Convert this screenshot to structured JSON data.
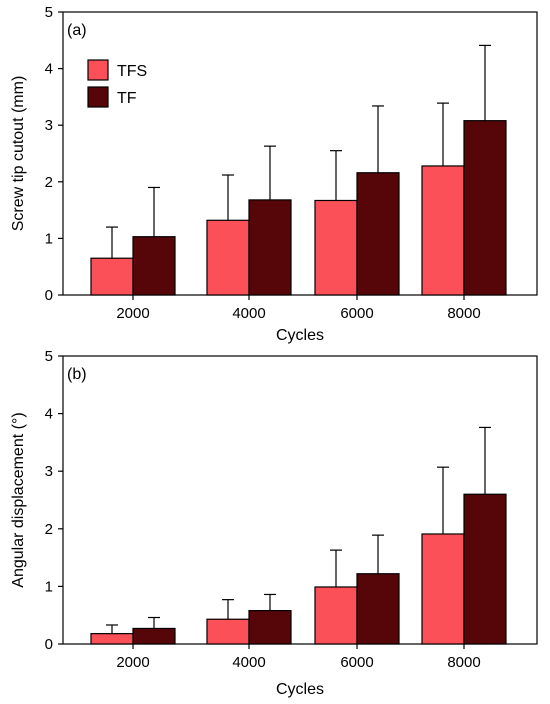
{
  "chart_data": [
    {
      "type": "bar",
      "panel_label": "(a)",
      "xlabel": "Cycles",
      "ylabel": "Screw tip cutout (mm)",
      "categories": [
        "2000",
        "4000",
        "6000",
        "8000"
      ],
      "ylim": [
        0,
        5
      ],
      "yticks": [
        "0",
        "1",
        "2",
        "3",
        "4",
        "5"
      ],
      "legend": "top-left",
      "error_bars": true,
      "series": [
        {
          "name": "TFS",
          "color": "#fc5058",
          "values": [
            0.65,
            1.32,
            1.67,
            2.28
          ],
          "errors": [
            0.55,
            0.8,
            0.88,
            1.11
          ]
        },
        {
          "name": "TF",
          "color": "#560508",
          "values": [
            1.03,
            1.68,
            2.16,
            3.08
          ],
          "errors": [
            0.87,
            0.95,
            1.18,
            1.33
          ]
        }
      ]
    },
    {
      "type": "bar",
      "panel_label": "(b)",
      "xlabel": "Cycles",
      "ylabel": "Angular displacement (°)",
      "categories": [
        "2000",
        "4000",
        "6000",
        "8000"
      ],
      "ylim": [
        0,
        5
      ],
      "yticks": [
        "0",
        "1",
        "2",
        "3",
        "4",
        "5"
      ],
      "error_bars": true,
      "series": [
        {
          "name": "TFS",
          "color": "#fc5058",
          "values": [
            0.18,
            0.43,
            0.99,
            1.91
          ],
          "errors": [
            0.15,
            0.34,
            0.64,
            1.16
          ]
        },
        {
          "name": "TF",
          "color": "#560508",
          "values": [
            0.27,
            0.58,
            1.22,
            2.6
          ],
          "errors": [
            0.19,
            0.28,
            0.67,
            1.16
          ]
        }
      ]
    }
  ]
}
